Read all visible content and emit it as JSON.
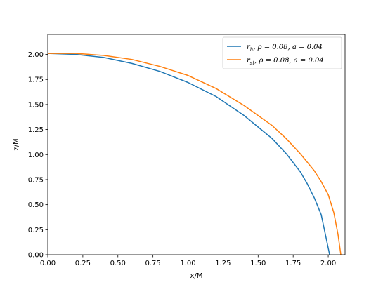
{
  "chart_data": {
    "type": "line",
    "xlabel": "x/M",
    "ylabel": "z/M",
    "xlim": [
      0.0,
      2.12
    ],
    "ylim": [
      0.0,
      2.2
    ],
    "xticks": [
      "0.00",
      "0.25",
      "0.50",
      "0.75",
      "1.00",
      "1.25",
      "1.50",
      "1.75",
      "2.00"
    ],
    "yticks": [
      "0.00",
      "0.25",
      "0.50",
      "0.75",
      "1.00",
      "1.25",
      "1.50",
      "1.75",
      "2.00"
    ],
    "grid": false,
    "legend_position": "top-right",
    "series": [
      {
        "name": "r_h, ρ = 0.08, a = 0.04",
        "legend_main": "r",
        "legend_sub": "h",
        "legend_rest": ", ρ = 0.08, a = 0.04",
        "color": "#1f77b4",
        "x": [
          0.0,
          0.2,
          0.4,
          0.6,
          0.8,
          1.0,
          1.2,
          1.4,
          1.6,
          1.7,
          1.8,
          1.85,
          1.9,
          1.95,
          1.98,
          2.01
        ],
        "y": [
          2.01,
          2.0,
          1.97,
          1.91,
          1.83,
          1.72,
          1.58,
          1.39,
          1.16,
          1.01,
          0.83,
          0.71,
          0.57,
          0.4,
          0.2,
          0.0
        ]
      },
      {
        "name": "r_st, ρ = 0.08, a = 0.04",
        "legend_main": "r",
        "legend_sub": "st",
        "legend_rest": ", ρ = 0.08, a = 0.04",
        "color": "#ff7f0e",
        "x": [
          0.0,
          0.2,
          0.4,
          0.6,
          0.8,
          1.0,
          1.2,
          1.4,
          1.6,
          1.7,
          1.8,
          1.9,
          1.95,
          2.0,
          2.04,
          2.07,
          2.09
        ],
        "y": [
          2.01,
          2.01,
          1.99,
          1.95,
          1.88,
          1.79,
          1.66,
          1.49,
          1.29,
          1.16,
          1.01,
          0.84,
          0.73,
          0.6,
          0.42,
          0.2,
          0.0
        ]
      }
    ]
  }
}
